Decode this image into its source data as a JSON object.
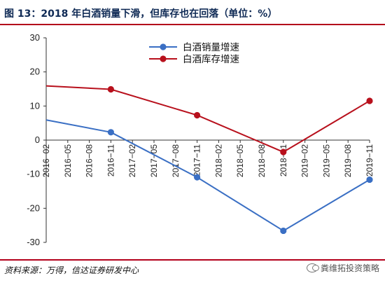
{
  "header": {
    "title": "图 13：2018 年白酒销量下滑，但库存也在回落（单位：%）"
  },
  "footer": {
    "source": "资料来源：万得，信达证券研发中心",
    "watermark": "粪维拓投资策略",
    "watermark_icon": "wechat-icon"
  },
  "chart_data": {
    "type": "line",
    "title": "",
    "xlabel": "",
    "ylabel": "",
    "ylim": [
      -30,
      30
    ],
    "yticks": [
      30,
      20,
      10,
      0,
      -10,
      -20,
      -30
    ],
    "categories": [
      "2016-02",
      "2016-05",
      "2016-08",
      "2016-11",
      "2017-02",
      "2017-05",
      "2017-08",
      "2017-11",
      "2018-02",
      "2018-05",
      "2018-08",
      "2018-11",
      "2019-02",
      "2019-05",
      "2019-08",
      "2019-11"
    ],
    "tick_labels": [
      "2016−02",
      "2016−05",
      "2016−08",
      "2016−11",
      "2017−02",
      "2017−05",
      "2017−08",
      "2017−11",
      "2018−02",
      "2018−05",
      "2018−08",
      "2018−11",
      "2019−02",
      "2019−05",
      "2019−08",
      "2019−11"
    ],
    "grid": false,
    "legend_position": "top-right",
    "series": [
      {
        "name": "白酒销量增速",
        "color": "#3a6fc4",
        "points": [
          {
            "x": "2016-02",
            "y": 5.9,
            "marker": false
          },
          {
            "x": "2016-11",
            "y": 2.3,
            "marker": true
          },
          {
            "x": "2017-11",
            "y": -10.9,
            "marker": true
          },
          {
            "x": "2018-11",
            "y": -26.6,
            "marker": true
          },
          {
            "x": "2019-11",
            "y": -11.6,
            "marker": true
          }
        ]
      },
      {
        "name": "白酒库存增速",
        "color": "#b8101c",
        "points": [
          {
            "x": "2016-02",
            "y": 15.9,
            "marker": false
          },
          {
            "x": "2016-11",
            "y": 14.9,
            "marker": true
          },
          {
            "x": "2017-11",
            "y": 7.3,
            "marker": true
          },
          {
            "x": "2018-11",
            "y": -3.5,
            "marker": true
          },
          {
            "x": "2019-11",
            "y": 11.5,
            "marker": true
          }
        ]
      }
    ]
  }
}
